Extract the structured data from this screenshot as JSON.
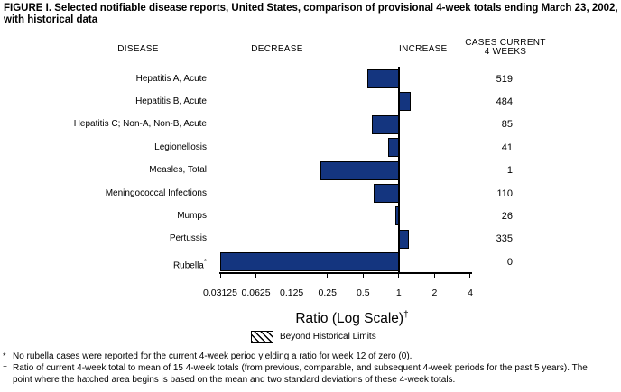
{
  "figure": {
    "title": "FIGURE I. Selected notifiable disease reports, United States, comparison of provisional 4-week totals ending March 23, 2002, with historical data"
  },
  "headers": {
    "disease": "DISEASE",
    "decrease": "DECREASE",
    "increase": "INCREASE",
    "cases_line1": "CASES CURRENT",
    "cases_line2": "4 WEEKS"
  },
  "chart_data": {
    "type": "bar",
    "orientation": "horizontal",
    "scale": "log2",
    "baseline_ratio": 1,
    "bar_color": "#14357F",
    "axis": {
      "label": "Ratio (Log Scale)",
      "label_footnote_marker": "†",
      "ticks": [
        0.03125,
        0.0625,
        0.125,
        0.25,
        0.5,
        1,
        2,
        4
      ],
      "tick_labels": [
        "0.03125",
        "0.0625",
        "0.125",
        "0.25",
        "0.5",
        "1",
        "2",
        "4"
      ],
      "range": [
        0.03125,
        4
      ]
    },
    "rows": [
      {
        "disease": "Hepatitis A, Acute",
        "ratio": 0.54,
        "cases": "519",
        "beyond_historical_limits": false
      },
      {
        "disease": "Hepatitis B, Acute",
        "ratio": 1.27,
        "cases": "484",
        "beyond_historical_limits": false
      },
      {
        "disease": "Hepatitis C; Non-A, Non-B, Acute",
        "ratio": 0.59,
        "cases": "85",
        "beyond_historical_limits": false
      },
      {
        "disease": "Legionellosis",
        "ratio": 0.81,
        "cases": "41",
        "beyond_historical_limits": false
      },
      {
        "disease": "Measles, Total",
        "ratio": 0.22,
        "cases": "1",
        "beyond_historical_limits": false
      },
      {
        "disease": "Meningococcal Infections",
        "ratio": 0.61,
        "cases": "110",
        "beyond_historical_limits": false
      },
      {
        "disease": "Mumps",
        "ratio": 0.93,
        "cases": "26",
        "beyond_historical_limits": false
      },
      {
        "disease": "Pertussis",
        "ratio": 1.22,
        "cases": "335",
        "beyond_historical_limits": false
      },
      {
        "disease": "Rubella",
        "marker": "*",
        "ratio": 0.03125,
        "cases": "0",
        "beyond_historical_limits": false,
        "note": "actual ratio 0, bar drawn to axis minimum"
      }
    ],
    "legend": {
      "swatch": "diagonal-hatch",
      "label": "Beyond Historical Limits"
    }
  },
  "footnotes": [
    {
      "marker": "*",
      "text": "No rubella cases were reported for the current 4-week period yielding a ratio for week 12 of zero (0)."
    },
    {
      "marker": "†",
      "text": "Ratio of current 4-week total to mean of 15 4-week totals (from previous, comparable, and subsequent 4-week periods for the past 5 years). The point where the hatched area begins is based on the mean and two standard deviations of these 4-week totals."
    }
  ]
}
